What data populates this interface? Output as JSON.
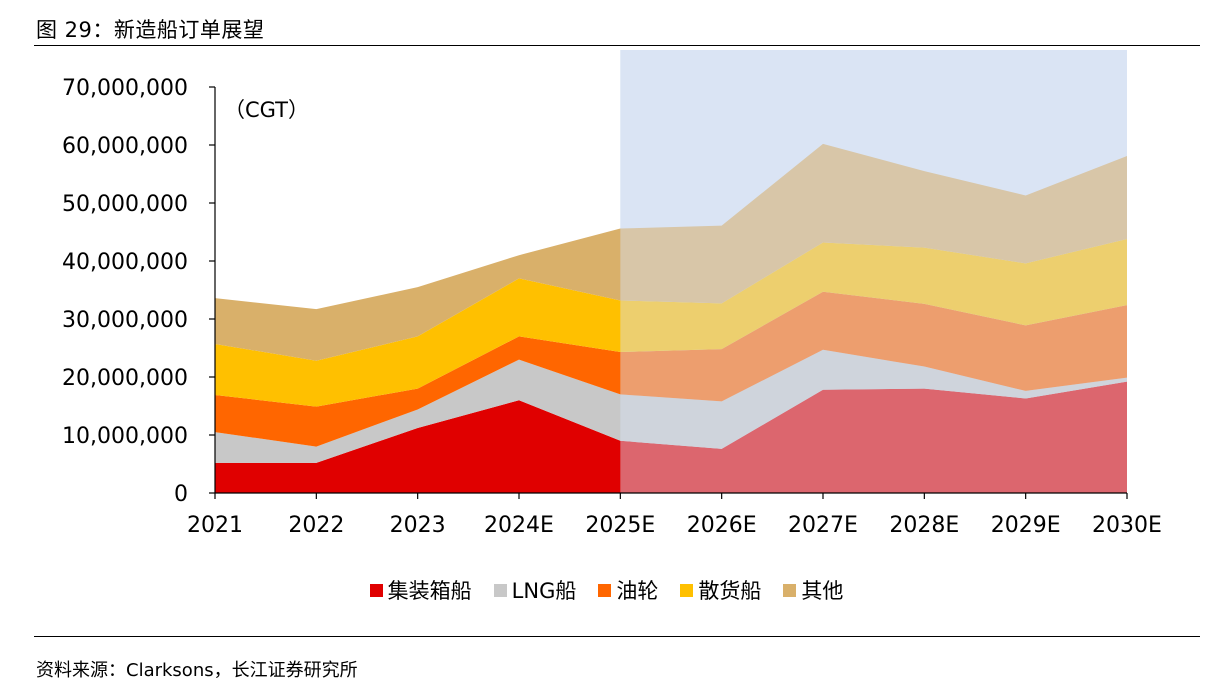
{
  "figure_title": "图 29：新造船订单展望",
  "source_text": "资料来源：Clarksons，长江证券研究所",
  "unit_label": "（CGT）",
  "chart_data": {
    "type": "area",
    "stacked": true,
    "categories": [
      "2021",
      "2022",
      "2023",
      "2024E",
      "2025E",
      "2026E",
      "2027E",
      "2028E",
      "2029E",
      "2030E"
    ],
    "ylim": [
      0,
      70000000
    ],
    "yticks": [
      "0",
      "10,000,000",
      "20,000,000",
      "30,000,000",
      "40,000,000",
      "50,000,000",
      "60,000,000",
      "70,000,000"
    ],
    "ytick_values": [
      0,
      10000000,
      20000000,
      30000000,
      40000000,
      50000000,
      60000000,
      70000000
    ],
    "forecast_shade_range": [
      "2025E",
      "2030E"
    ],
    "series": [
      {
        "name": "集装箱船",
        "color": "#E00000",
        "values": [
          5200000,
          5200000,
          11200000,
          16000000,
          9000000,
          7600000,
          17800000,
          18000000,
          16300000,
          19200000
        ]
      },
      {
        "name": "LNG船",
        "color": "#C8C8C8",
        "values": [
          5300000,
          2800000,
          3200000,
          7000000,
          8000000,
          8200000,
          6900000,
          3800000,
          1300000,
          700000
        ]
      },
      {
        "name": "油轮",
        "color": "#FF6600",
        "values": [
          6400000,
          6900000,
          3600000,
          4000000,
          7300000,
          9000000,
          10000000,
          10800000,
          11300000,
          12500000
        ]
      },
      {
        "name": "散货船",
        "color": "#FFC000",
        "values": [
          8800000,
          7900000,
          9000000,
          10000000,
          8900000,
          7900000,
          8500000,
          9700000,
          10700000,
          11400000
        ]
      },
      {
        "name": "其他",
        "color": "#D9B06A",
        "values": [
          7900000,
          8900000,
          8500000,
          4000000,
          12400000,
          13400000,
          17000000,
          13200000,
          11700000,
          14300000
        ]
      }
    ],
    "legend_position": "bottom"
  }
}
